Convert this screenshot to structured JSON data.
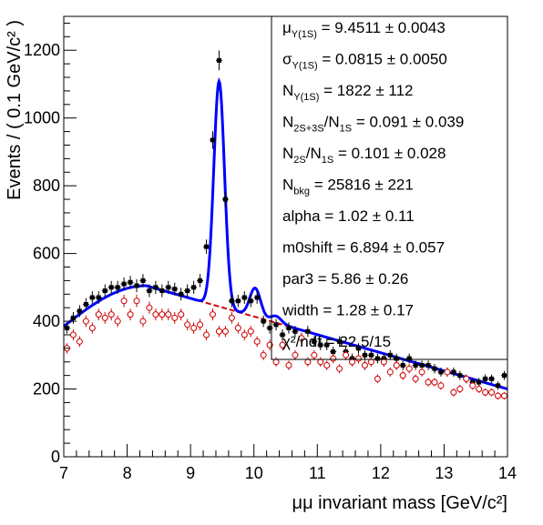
{
  "chart_data": {
    "type": "scatter",
    "xlabel": "μμ invariant mass [GeV/c²]",
    "ylabel": "Events / ( 0.1 GeV/c² )",
    "xlim": [
      7,
      14
    ],
    "ylim": [
      0,
      1300
    ],
    "x_ticks": [
      "7",
      "8",
      "9",
      "10",
      "11",
      "12",
      "13",
      "14"
    ],
    "y_ticks": [
      "0",
      "200",
      "400",
      "600",
      "800",
      "1000",
      "1200"
    ],
    "x_tick_values": [
      7,
      8,
      9,
      10,
      11,
      12,
      13,
      14
    ],
    "y_tick_values": [
      0,
      200,
      400,
      600,
      800,
      1000,
      1200
    ],
    "colors": {
      "black_data": "#000000",
      "red_data": "#cc0000",
      "fit": "#0000ff",
      "background": "#cc0000"
    },
    "stats_box": [
      {
        "label": "μ",
        "sub": "Y(1S)",
        "rest": " =  9.4511 ± 0.0043"
      },
      {
        "label": "σ",
        "sub": "Y(1S)",
        "rest": " =  0.0815 ± 0.0050"
      },
      {
        "label": "N",
        "sub": "Y(1S)",
        "rest": " =  1822 ± 112"
      },
      {
        "label": "N",
        "sub": "2S+3S",
        "rest": "/N",
        "sub2": "1S",
        "rest2": " =  0.091 ± 0.039"
      },
      {
        "label": "N",
        "sub": "2S",
        "rest": "/N",
        "sub2": "1S",
        "rest2": " =  0.101 ± 0.028"
      },
      {
        "label": "N",
        "sub": "bkg",
        "rest": " =  25816 ± 221"
      },
      {
        "label": "alpha",
        "sub": "",
        "rest": " =  1.02 ± 0.11"
      },
      {
        "label": "m0shift",
        "sub": "",
        "rest": " =  6.894 ± 0.057"
      },
      {
        "label": "par3",
        "sub": "",
        "rest": " =  5.86 ± 0.26"
      },
      {
        "label": "width",
        "sub": "",
        "rest": " =  1.28 ± 0.17"
      },
      {
        "label": "χ²/ndf",
        "sub": "",
        "rest": " =  22.5/15"
      }
    ],
    "series": [
      {
        "marker": "filled-square",
        "x": [
          7.05,
          7.15,
          7.25,
          7.35,
          7.45,
          7.55,
          7.65,
          7.75,
          7.85,
          7.95,
          8.05,
          8.15,
          8.25,
          8.35,
          8.45,
          8.55,
          8.65,
          8.75,
          8.85,
          8.95,
          9.05,
          9.15,
          9.25,
          9.35,
          9.45,
          9.55,
          9.65,
          9.75,
          9.85,
          9.95,
          10.05,
          10.15,
          10.25,
          10.35,
          10.45,
          10.55,
          10.65,
          10.75,
          10.85,
          10.95,
          11.05,
          11.15,
          11.25,
          11.35,
          11.45,
          11.55,
          11.65,
          11.75,
          11.85,
          11.95,
          12.05,
          12.15,
          12.25,
          12.35,
          12.45,
          12.55,
          12.65,
          12.75,
          12.85,
          12.95,
          13.05,
          13.15,
          13.25,
          13.35,
          13.45,
          13.55,
          13.65,
          13.75,
          13.85,
          13.95
        ],
        "y": [
          380,
          410,
          430,
          450,
          470,
          470,
          490,
          500,
          500,
          510,
          515,
          505,
          520,
          490,
          500,
          490,
          500,
          495,
          480,
          490,
          500,
          520,
          620,
          935,
          1170,
          760,
          460,
          460,
          470,
          460,
          470,
          400,
          380,
          390,
          360,
          380,
          370,
          350,
          370,
          340,
          330,
          330,
          310,
          340,
          310,
          290,
          320,
          300,
          300,
          290,
          290,
          300,
          290,
          270,
          290,
          270,
          270,
          270,
          260,
          250,
          250,
          250,
          240,
          230,
          220,
          220,
          230,
          230,
          210,
          240
        ]
      },
      {
        "marker": "open-circle",
        "x": [
          7.05,
          7.15,
          7.25,
          7.35,
          7.45,
          7.55,
          7.65,
          7.75,
          7.85,
          7.95,
          8.05,
          8.15,
          8.25,
          8.35,
          8.45,
          8.55,
          8.65,
          8.75,
          8.85,
          8.95,
          9.05,
          9.15,
          9.25,
          9.35,
          9.45,
          9.55,
          9.65,
          9.75,
          9.85,
          9.95,
          10.05,
          10.15,
          10.25,
          10.35,
          10.45,
          10.55,
          10.65,
          10.75,
          10.85,
          10.95,
          11.05,
          11.15,
          11.25,
          11.35,
          11.45,
          11.55,
          11.65,
          11.75,
          11.85,
          11.95,
          12.05,
          12.15,
          12.25,
          12.35,
          12.45,
          12.55,
          12.65,
          12.75,
          12.85,
          12.95,
          13.05,
          13.15,
          13.25,
          13.35,
          13.45,
          13.55,
          13.65,
          13.75,
          13.85,
          13.95
        ],
        "y": [
          320,
          360,
          340,
          400,
          380,
          420,
          410,
          420,
          400,
          460,
          420,
          460,
          400,
          440,
          420,
          420,
          420,
          410,
          420,
          390,
          380,
          390,
          360,
          420,
          370,
          370,
          410,
          380,
          360,
          370,
          340,
          300,
          330,
          280,
          330,
          270,
          300,
          350,
          280,
          300,
          280,
          270,
          290,
          260,
          300,
          280,
          290,
          270,
          280,
          230,
          280,
          250,
          270,
          240,
          260,
          230,
          250,
          220,
          220,
          210,
          250,
          190,
          200,
          230,
          210,
          200,
          190,
          190,
          180,
          180
        ]
      }
    ]
  }
}
